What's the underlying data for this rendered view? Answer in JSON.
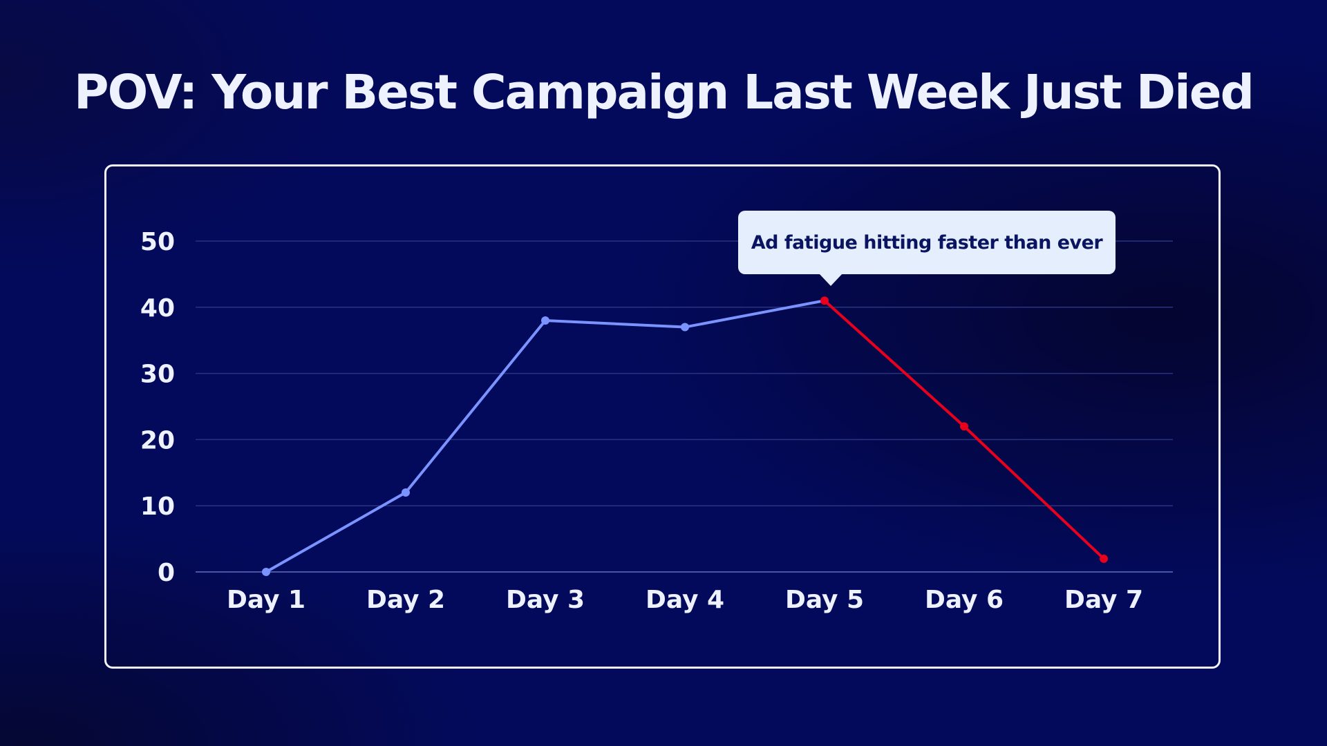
{
  "title": "POV: Your Best Campaign Last Week Just Died",
  "callout": {
    "text": "Ad fatigue hitting faster than ever",
    "anchor_category": "Day 5"
  },
  "colors": {
    "rising": "#7b93ff",
    "falling": "#e8001c",
    "grid": "#2a3380",
    "text": "#eef2ff"
  },
  "chart_data": {
    "type": "line",
    "title": "POV: Your Best Campaign Last Week Just Died",
    "xlabel": "",
    "ylabel": "",
    "categories": [
      "Day 1",
      "Day 2",
      "Day 3",
      "Day 4",
      "Day 5",
      "Day 6",
      "Day 7"
    ],
    "series": [
      {
        "values": [
          0,
          12,
          38,
          37,
          41,
          22,
          2
        ]
      }
    ],
    "segment_colors": {
      "before_peak": "#7b93ff",
      "after_peak": "#e8001c",
      "peak_category": "Day 5"
    },
    "yticks": [
      0,
      10,
      20,
      30,
      40,
      50
    ],
    "ylim": [
      0,
      50
    ],
    "grid": true,
    "legend": "none"
  }
}
